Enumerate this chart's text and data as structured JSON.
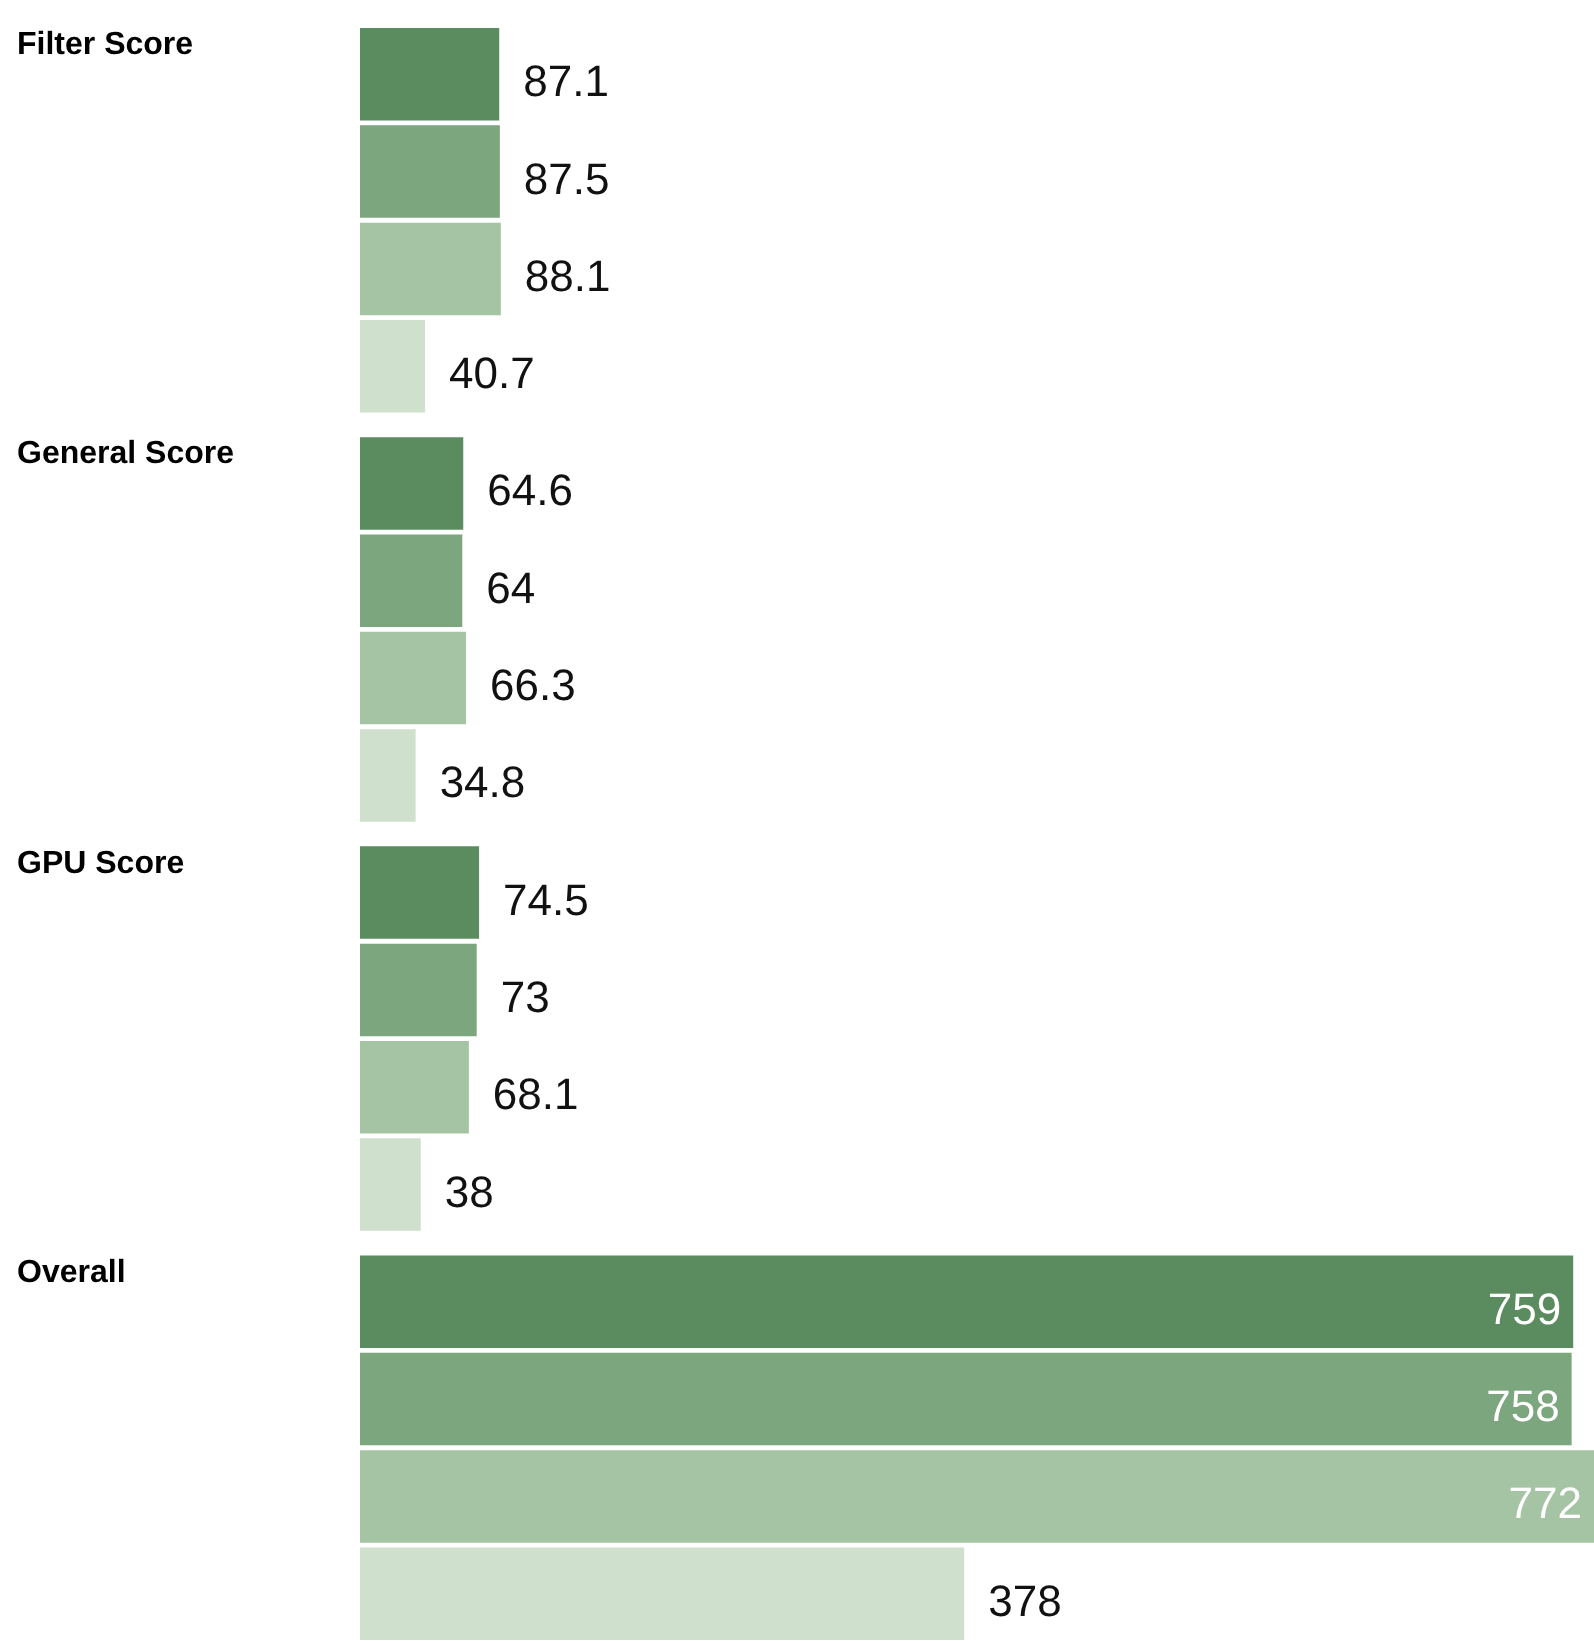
{
  "chart_data": {
    "type": "bar",
    "orientation": "horizontal",
    "categories": [
      "Filter Score",
      "General Score",
      "GPU Score",
      "Overall"
    ],
    "data_labels": true,
    "tick_labels": "y",
    "series": [
      {
        "color": "#5b8c5f",
        "values": [
          87.1,
          64.6,
          74.5,
          759
        ]
      },
      {
        "color": "#7ca67d",
        "values": [
          87.5,
          64,
          73,
          758
        ]
      },
      {
        "color": "#a5c4a3",
        "values": [
          88.1,
          66.3,
          68.1,
          772
        ]
      },
      {
        "color": "#cfe0cc",
        "values": [
          40.7,
          34.8,
          38,
          378
        ]
      }
    ]
  }
}
